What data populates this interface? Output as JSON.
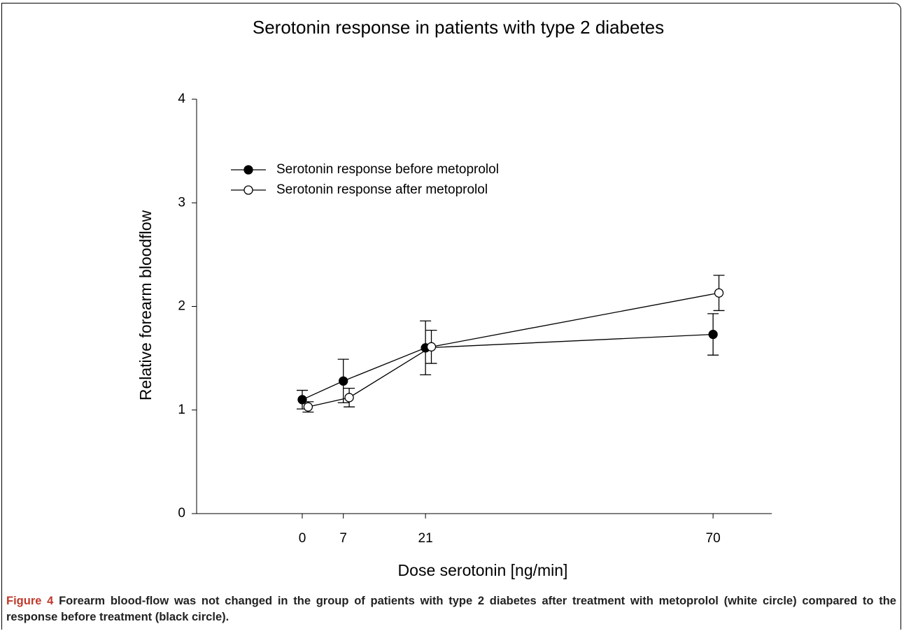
{
  "chart_data": {
    "type": "line",
    "title": "Serotonin response in patients with type 2 diabetes",
    "xlabel": "Dose serotonin [ng/min]",
    "ylabel": "Relative forearm bloodflow",
    "xlim": [
      -18,
      80
    ],
    "xticks": [
      0,
      7,
      21,
      70
    ],
    "ylim": [
      0,
      4
    ],
    "yticks": [
      0,
      1,
      2,
      3,
      4
    ],
    "legend": "upper left",
    "series": [
      {
        "name": "Serotonin response before metoprolol",
        "color": "#000000",
        "fill": "#000000",
        "x": [
          0,
          7,
          21,
          70
        ],
        "values": [
          1.1,
          1.28,
          1.6,
          1.73
        ],
        "errors": [
          0.09,
          0.21,
          0.26,
          0.2
        ]
      },
      {
        "name": "Serotonin response after metoprolol",
        "color": "#000000",
        "fill": "#ffffff",
        "x": [
          1,
          8,
          22,
          71
        ],
        "values": [
          1.03,
          1.12,
          1.61,
          2.13
        ],
        "errors": [
          0.05,
          0.09,
          0.16,
          0.17
        ]
      }
    ]
  },
  "caption": {
    "label": "Figure 4",
    "text": "Forearm blood-flow was not changed in the group of patients with type 2 diabetes after treatment with metoprolol (white circle) compared to the response before treatment (black circle)."
  }
}
